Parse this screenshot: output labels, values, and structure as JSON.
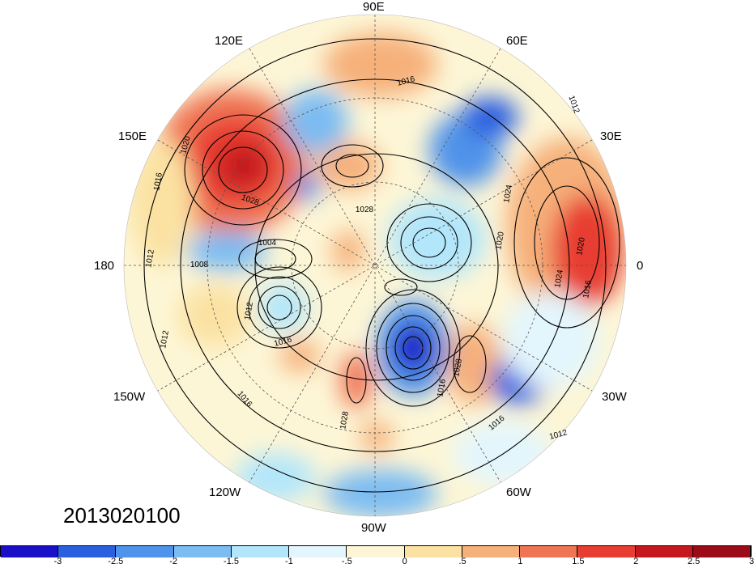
{
  "map": {
    "projection": "north-polar-stereographic",
    "longitude_labels": [
      "90E",
      "120E",
      "60E",
      "150E",
      "30E",
      "180",
      "0",
      "150W",
      "30W",
      "120W",
      "60W",
      "90W"
    ],
    "isobar_labels": [
      "1016",
      "1012",
      "1020",
      "1028",
      "1016",
      "1028",
      "1024",
      "1020",
      "1004",
      "1008",
      "1012",
      "1012",
      "1016",
      "1016",
      "1028",
      "1016",
      "1012",
      "1016",
      "1012",
      "1024",
      "1016",
      "1028",
      "1020"
    ],
    "date_stamp": "2013020100"
  },
  "colorbar": {
    "colors": [
      "#1a10c8",
      "#2a5fe0",
      "#4f93ea",
      "#7cbcf2",
      "#b2e6fb",
      "#e3f6fd",
      "#fdf6d6",
      "#fbe2a3",
      "#f6b07a",
      "#ef7554",
      "#e83d33",
      "#c4171e",
      "#9b0c18"
    ],
    "tick_labels": [
      "-3",
      "-2.5",
      "-2",
      "-1.5",
      "-1",
      "-.5",
      "0",
      ".5",
      "1",
      "1.5",
      "2",
      "2.5",
      "3"
    ]
  }
}
